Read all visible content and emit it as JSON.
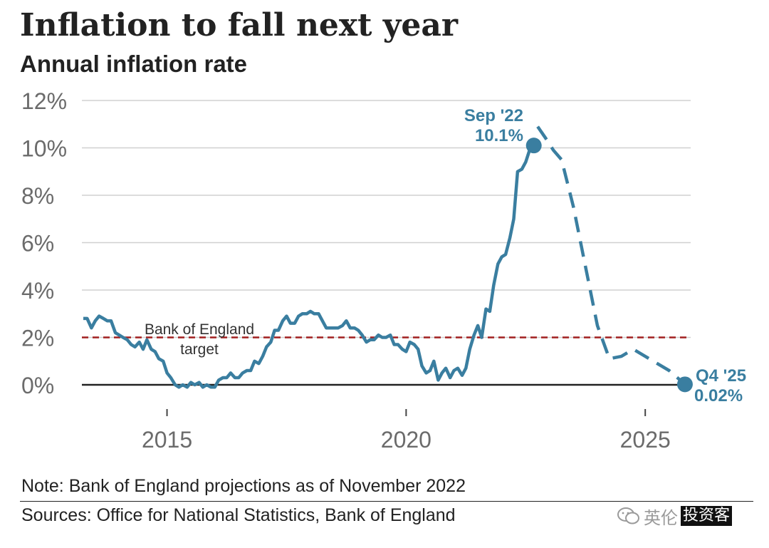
{
  "title": "Inflation to fall next year",
  "subtitle": "Annual inflation rate",
  "note": "Note: Bank of England projections as of November 2022",
  "source": "Sources: Office for National Statistics, Bank of England",
  "watermark": {
    "icon": "wechat-icon",
    "text_plain": "英伦",
    "text_boxed": "投资客"
  },
  "colors": {
    "series": "#3a7ea0",
    "target": "#a11f1f",
    "grid": "#d0d0d0",
    "zero": "#222222",
    "text": "#222222",
    "axis_text": "#6b6b6b"
  },
  "chart_data": {
    "type": "line",
    "title": "Inflation to fall next year",
    "subtitle": "Annual inflation rate",
    "xlabel": "",
    "ylabel": "",
    "xlim": [
      2013.22,
      2025.95
    ],
    "ylim": [
      -0.6,
      12
    ],
    "yticks": [
      0,
      2,
      4,
      6,
      8,
      10,
      12
    ],
    "ytick_labels": [
      "0%",
      "2%",
      "4%",
      "6%",
      "8%",
      "10%",
      "12%"
    ],
    "xticks": [
      2015,
      2020,
      2025
    ],
    "xtick_labels": [
      "2015",
      "2020",
      "2025"
    ],
    "grid": true,
    "target": {
      "value": 2,
      "label_line1": "Bank of England",
      "label_line2": "target"
    },
    "series": [
      {
        "style": "solid",
        "x": [
          2013.25,
          2013.33,
          2013.42,
          2013.5,
          2013.58,
          2013.67,
          2013.75,
          2013.83,
          2013.92,
          2014.0,
          2014.08,
          2014.17,
          2014.25,
          2014.33,
          2014.42,
          2014.5,
          2014.58,
          2014.67,
          2014.75,
          2014.83,
          2014.92,
          2015.0,
          2015.08,
          2015.17,
          2015.25,
          2015.33,
          2015.42,
          2015.5,
          2015.58,
          2015.67,
          2015.75,
          2015.83,
          2015.92,
          2016.0,
          2016.08,
          2016.17,
          2016.25,
          2016.33,
          2016.42,
          2016.5,
          2016.58,
          2016.67,
          2016.75,
          2016.83,
          2016.92,
          2017.0,
          2017.08,
          2017.17,
          2017.25,
          2017.33,
          2017.42,
          2017.5,
          2017.58,
          2017.67,
          2017.75,
          2017.83,
          2017.92,
          2018.0,
          2018.08,
          2018.17,
          2018.25,
          2018.33,
          2018.42,
          2018.5,
          2018.58,
          2018.67,
          2018.75,
          2018.83,
          2018.92,
          2019.0,
          2019.08,
          2019.17,
          2019.25,
          2019.33,
          2019.42,
          2019.5,
          2019.58,
          2019.67,
          2019.75,
          2019.83,
          2019.92,
          2020.0,
          2020.08,
          2020.17,
          2020.25,
          2020.33,
          2020.42,
          2020.5,
          2020.58,
          2020.67,
          2020.75,
          2020.83,
          2020.92,
          2021.0,
          2021.08,
          2021.17,
          2021.25,
          2021.33,
          2021.42,
          2021.5,
          2021.58,
          2021.67,
          2021.75,
          2021.83,
          2021.92,
          2022.0,
          2022.08,
          2022.17,
          2022.25,
          2022.33,
          2022.42,
          2022.5,
          2022.58,
          2022.67
        ],
        "y": [
          2.8,
          2.8,
          2.4,
          2.7,
          2.9,
          2.8,
          2.7,
          2.7,
          2.2,
          2.1,
          2.0,
          1.9,
          1.7,
          1.6,
          1.8,
          1.5,
          1.9,
          1.5,
          1.4,
          1.1,
          1.0,
          0.5,
          0.3,
          0.0,
          -0.1,
          0.0,
          -0.1,
          0.1,
          0.0,
          0.1,
          -0.1,
          0.0,
          -0.1,
          -0.1,
          0.2,
          0.3,
          0.3,
          0.5,
          0.3,
          0.3,
          0.5,
          0.6,
          0.6,
          1.0,
          0.9,
          1.2,
          1.6,
          1.8,
          2.3,
          2.3,
          2.7,
          2.9,
          2.6,
          2.6,
          2.9,
          3.0,
          3.0,
          3.1,
          3.0,
          3.0,
          2.7,
          2.4,
          2.4,
          2.4,
          2.4,
          2.5,
          2.7,
          2.4,
          2.4,
          2.3,
          2.1,
          1.8,
          1.9,
          1.9,
          2.1,
          2.0,
          2.0,
          2.1,
          1.7,
          1.7,
          1.5,
          1.4,
          1.8,
          1.7,
          1.5,
          0.8,
          0.5,
          0.6,
          1.0,
          0.2,
          0.5,
          0.7,
          0.3,
          0.6,
          0.7,
          0.4,
          0.7,
          1.5,
          2.1,
          2.5,
          2.0,
          3.2,
          3.1,
          4.2,
          5.1,
          5.4,
          5.5,
          6.2,
          7.0,
          9.0,
          9.1,
          9.4,
          9.9,
          10.1
        ]
      },
      {
        "style": "dashed",
        "x": [
          2022.75,
          2022.92,
          2023.08,
          2023.25,
          2023.5,
          2023.75,
          2024.0,
          2024.25,
          2024.5,
          2024.75,
          2025.0,
          2025.25,
          2025.5,
          2025.83
        ],
        "y": [
          10.9,
          10.4,
          9.9,
          9.5,
          7.5,
          5.0,
          2.5,
          1.1,
          1.2,
          1.5,
          1.2,
          0.9,
          0.6,
          0.02
        ]
      }
    ],
    "annotations": [
      {
        "x": 2022.67,
        "y": 10.1,
        "line1": "Sep '22",
        "line2": "10.1%"
      },
      {
        "x": 2025.83,
        "y": 0.02,
        "line1": "Q4 '25",
        "line2": "0.02%"
      }
    ]
  }
}
